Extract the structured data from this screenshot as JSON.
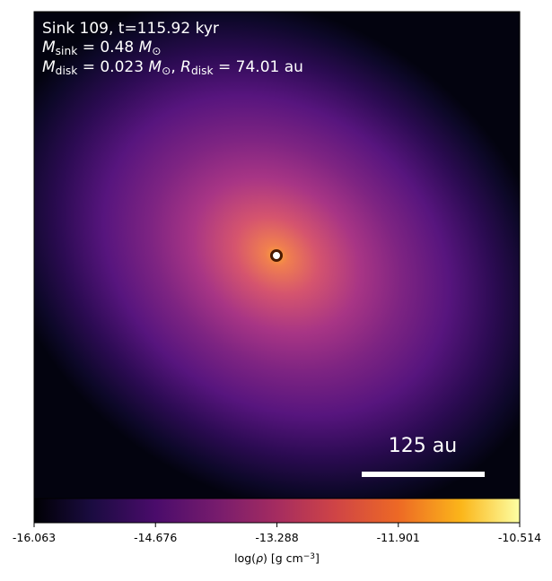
{
  "image": {
    "title": "Sink 109, t=115.92 kyr",
    "lines": [
      [
        {
          "text": "M",
          "style": "italic"
        },
        {
          "text": "sink",
          "style": "sub"
        },
        {
          "text": " = 0.48 "
        },
        {
          "text": "M",
          "style": "italic"
        },
        {
          "text": "⊙",
          "style": "sub"
        }
      ],
      [
        {
          "text": "M",
          "style": "italic"
        },
        {
          "text": "disk",
          "style": "sub"
        },
        {
          "text": " = 0.023 "
        },
        {
          "text": "M",
          "style": "italic"
        },
        {
          "text": "⊙",
          "style": "sub"
        },
        {
          "text": ", "
        },
        {
          "text": "R",
          "style": "italic"
        },
        {
          "text": "disk",
          "style": "sub"
        },
        {
          "text": " = 74.01 au"
        }
      ]
    ],
    "scale_bar": "125 au"
  },
  "colorbar": {
    "clim": [
      -16.063,
      -10.514
    ],
    "ticks": [
      -16.063,
      -14.676,
      -13.288,
      -11.901,
      -10.514
    ],
    "label": [
      {
        "text": "log("
      },
      {
        "text": "ρ",
        "style": "italic"
      },
      {
        "text": ") [g cm"
      },
      {
        "text": "−3",
        "style": "sup"
      },
      {
        "text": "]"
      }
    ]
  }
}
